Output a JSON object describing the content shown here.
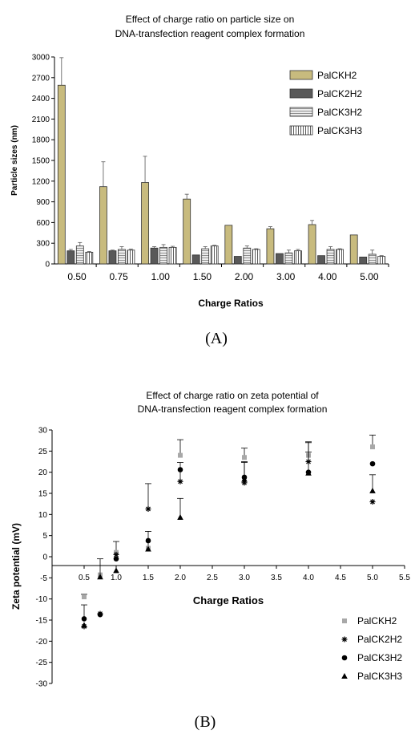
{
  "chart_data": [
    {
      "type": "bar",
      "title": "Effect of charge ratio on particle size on",
      "subtitle": "DNA-transfection reagent complex formation",
      "xlabel": "Charge Ratios",
      "ylabel": "Particle sizes (nm)",
      "ylim": [
        0,
        3000
      ],
      "yticks": [
        "0",
        "300",
        "600",
        "900",
        "1200",
        "1500",
        "1800",
        "2100",
        "2400",
        "2700",
        "3000"
      ],
      "categories": [
        "0.50",
        "0.75",
        "1.00",
        "1.50",
        "2.00",
        "3.00",
        "4.00",
        "5.00"
      ],
      "legend_position": "top-right",
      "caption": "(A)",
      "series": [
        {
          "name": "PalCKH2",
          "color": "#c8bb7e",
          "pattern": "solid",
          "values": [
            2590,
            1120,
            1180,
            940,
            560,
            510,
            570,
            420
          ],
          "errors": [
            400,
            360,
            380,
            70,
            0,
            30,
            60,
            0
          ]
        },
        {
          "name": "PalCK2H2",
          "color": "#595959",
          "pattern": "solid",
          "values": [
            190,
            190,
            230,
            130,
            110,
            150,
            120,
            100
          ],
          "errors": [
            20,
            10,
            20,
            0,
            0,
            0,
            0,
            0
          ]
        },
        {
          "name": "PalCK3H2",
          "color": "#e0e0e0",
          "pattern": "horizontal-stripes",
          "values": [
            260,
            210,
            240,
            220,
            230,
            160,
            210,
            140
          ],
          "errors": [
            50,
            40,
            40,
            30,
            30,
            40,
            40,
            60
          ]
        },
        {
          "name": "PalCK3H3",
          "color": "#ffffff",
          "pattern": "vertical-stripes",
          "values": [
            170,
            200,
            240,
            260,
            210,
            190,
            210,
            110
          ],
          "errors": [
            10,
            15,
            15,
            10,
            10,
            20,
            10,
            10
          ]
        }
      ]
    },
    {
      "type": "scatter",
      "title": "Effect of charge ratio on zeta potential of",
      "subtitle": "DNA-transfection reagent complex formation",
      "xlabel": "Charge Ratios",
      "ylabel": "Zeta potential (mV)",
      "xlim": [
        0,
        5.5
      ],
      "ylim": [
        -30,
        30
      ],
      "xticks": [
        "0.5",
        "1.0",
        "1.5",
        "2.0",
        "2.5",
        "3.0",
        "3.5",
        "4.0",
        "4.5",
        "5.0",
        "5.5"
      ],
      "yticks": [
        "30",
        "25",
        "20",
        "15",
        "10",
        "5",
        "0",
        "-5",
        "-10",
        "-15",
        "-20",
        "-25",
        "-30"
      ],
      "legend_position": "bottom-right",
      "caption": "(B)",
      "series": [
        {
          "name": "PalCKH2",
          "marker": "square",
          "color": "#a8a8a8",
          "x": [
            0.5,
            0.75,
            1.0,
            1.5,
            2.0,
            3.0,
            4.0,
            5.0
          ],
          "y": [
            -9.5,
            -4.3,
            1.0,
            2.0,
            24.0,
            23.5,
            24.0,
            26.0
          ],
          "errors": [
            0.6,
            0,
            2.6,
            4.0,
            3.7,
            2.2,
            3.2,
            2.8
          ]
        },
        {
          "name": "PalCK2H2",
          "marker": "asterisk",
          "color": "#000000",
          "x": [
            0.5,
            0.75,
            1.0,
            1.5,
            2.0,
            3.0,
            4.0,
            5.0
          ],
          "y": [
            -16.5,
            -13.5,
            0.5,
            11.3,
            17.8,
            17.5,
            22.5,
            13.0
          ],
          "errors": [
            0,
            0,
            0,
            6.0,
            4.5,
            5.0,
            4.5,
            0
          ]
        },
        {
          "name": "PalCK3H2",
          "marker": "circle",
          "color": "#000000",
          "x": [
            0.5,
            0.75,
            1.0,
            1.5,
            2.0,
            3.0,
            4.0,
            5.0
          ],
          "y": [
            -14.7,
            -13.7,
            -0.5,
            3.8,
            20.6,
            18.8,
            20.0,
            22.0
          ],
          "errors": [
            3.3,
            0,
            0,
            0,
            0,
            0,
            0,
            0
          ]
        },
        {
          "name": "PalCK3H3",
          "marker": "triangle",
          "color": "#000000",
          "x": [
            0.5,
            0.75,
            1.0,
            1.5,
            2.0,
            3.0,
            4.0,
            5.0
          ],
          "y": [
            -16.2,
            -4.8,
            -3.3,
            1.8,
            9.3,
            18.3,
            19.8,
            15.6
          ],
          "errors": [
            0,
            4.3,
            0,
            0,
            4.5,
            4.0,
            5.0,
            3.8
          ]
        }
      ]
    }
  ]
}
